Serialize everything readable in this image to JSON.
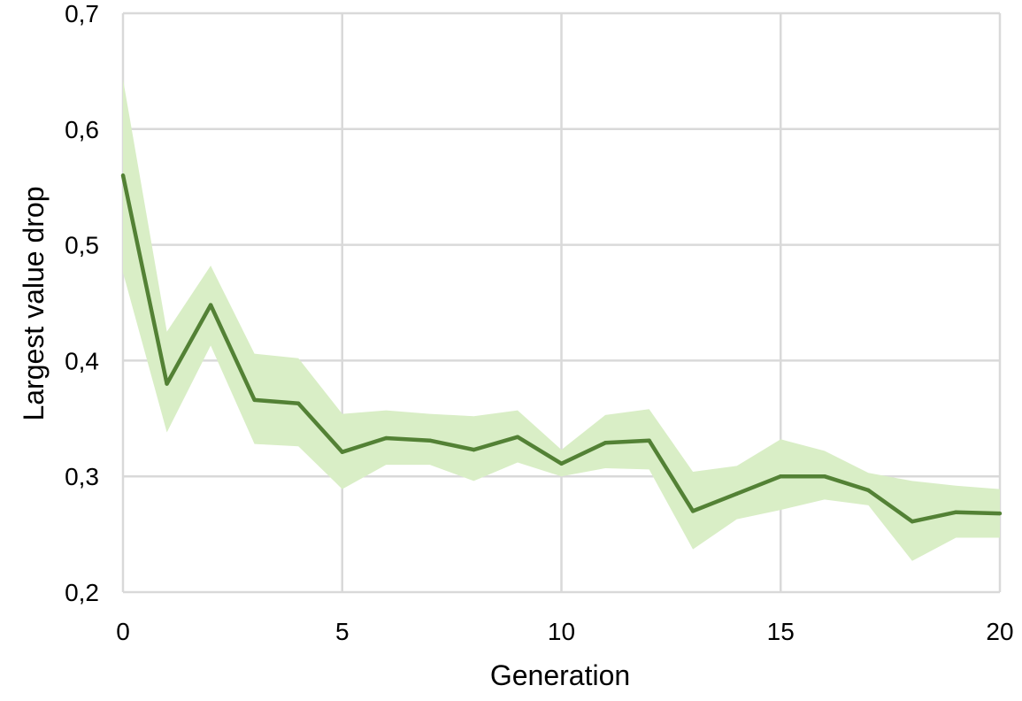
{
  "chart_data": {
    "type": "line",
    "xlabel": "Generation",
    "ylabel": "Largest value drop",
    "xlim": [
      0,
      20
    ],
    "ylim": [
      0.2,
      0.7
    ],
    "x_ticks": [
      0,
      5,
      10,
      15,
      20
    ],
    "x_tick_labels": [
      "0",
      "5",
      "10",
      "15",
      "20"
    ],
    "y_ticks": [
      0.2,
      0.3,
      0.4,
      0.5,
      0.6,
      0.7
    ],
    "y_tick_labels": [
      "0,2",
      "0,3",
      "0,4",
      "0,5",
      "0,6",
      "0,7"
    ],
    "grid": true,
    "legend": "none",
    "x": [
      0,
      1,
      2,
      3,
      4,
      5,
      6,
      7,
      8,
      9,
      10,
      11,
      12,
      13,
      14,
      15,
      16,
      17,
      18,
      19,
      20
    ],
    "series": [
      {
        "values": [
          0.56,
          0.38,
          0.448,
          0.366,
          0.363,
          0.321,
          0.333,
          0.331,
          0.323,
          0.334,
          0.311,
          0.329,
          0.331,
          0.27,
          0.285,
          0.3,
          0.3,
          0.288,
          0.261,
          0.269,
          0.268
        ],
        "band_upper": [
          0.643,
          0.425,
          0.482,
          0.406,
          0.402,
          0.354,
          0.357,
          0.354,
          0.352,
          0.357,
          0.323,
          0.353,
          0.358,
          0.304,
          0.309,
          0.332,
          0.322,
          0.303,
          0.296,
          0.292,
          0.289
        ],
        "band_lower": [
          0.476,
          0.338,
          0.413,
          0.328,
          0.326,
          0.289,
          0.31,
          0.31,
          0.296,
          0.312,
          0.3,
          0.307,
          0.306,
          0.237,
          0.263,
          0.271,
          0.28,
          0.275,
          0.227,
          0.247,
          0.247
        ]
      }
    ],
    "colors": {
      "line": "#538135",
      "band": "#d9eec6",
      "grid": "#d9d9d9"
    }
  }
}
